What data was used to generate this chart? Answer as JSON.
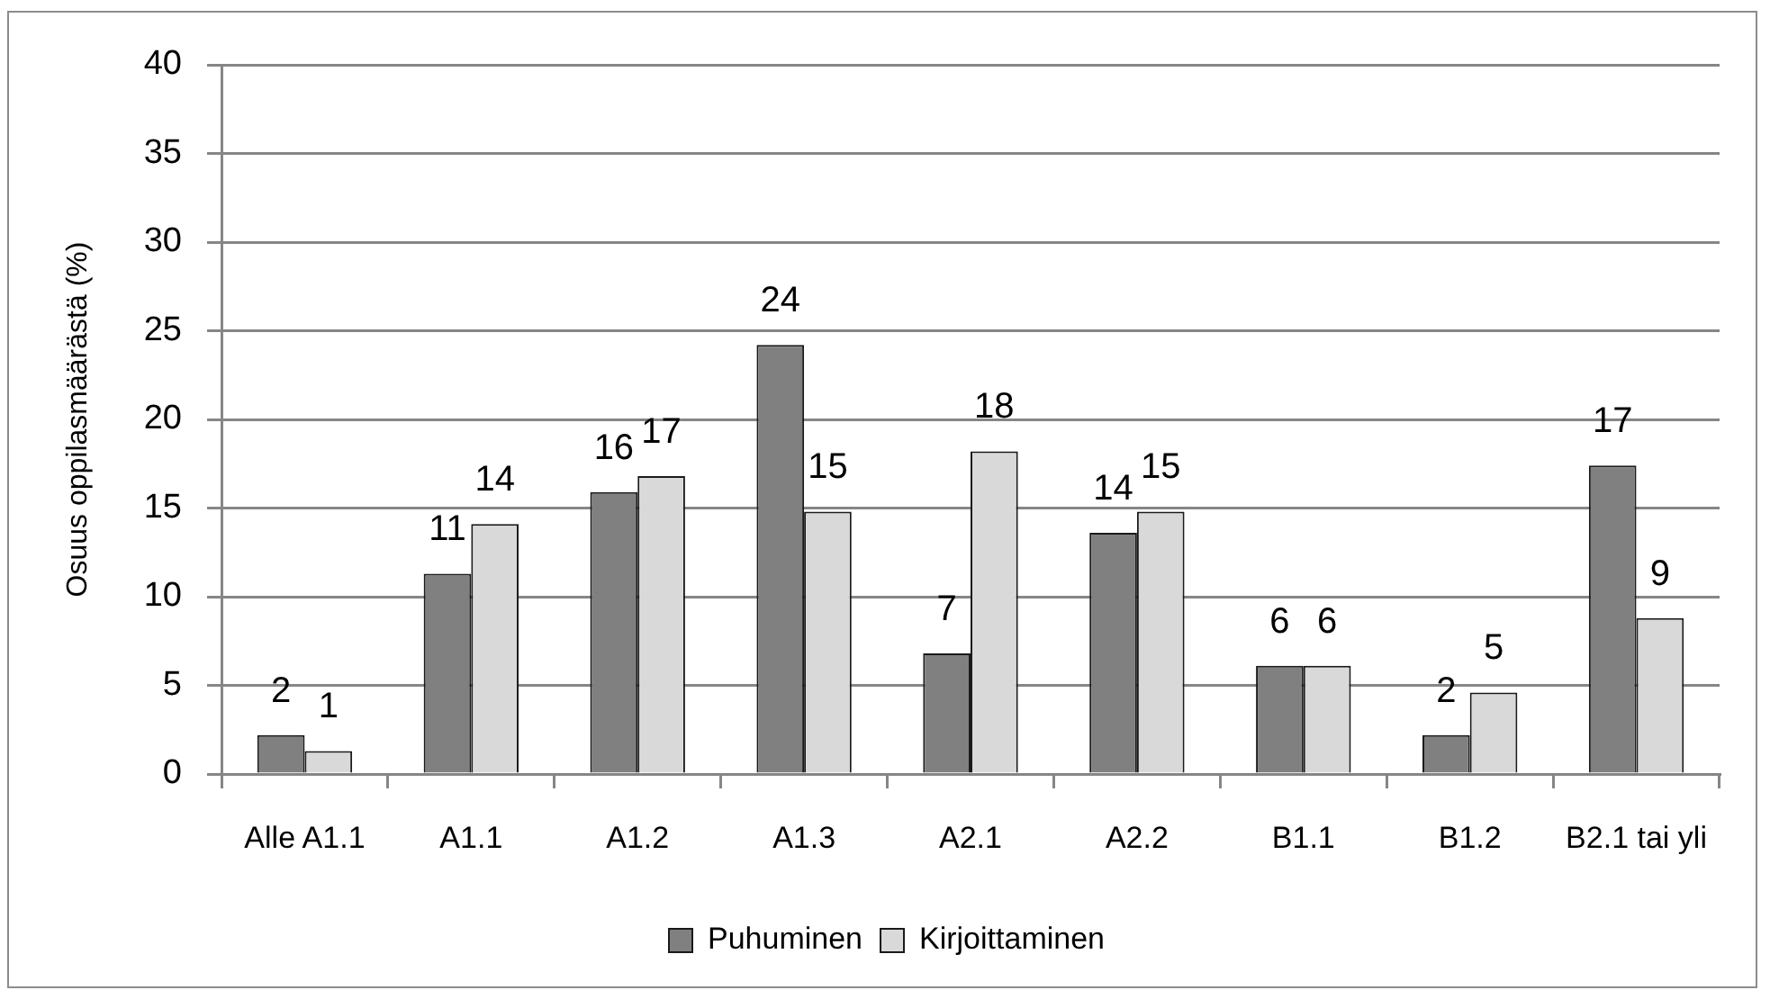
{
  "chart_data": {
    "type": "bar",
    "ylabel": "Osuus oppilasmäärästä (%)",
    "categories": [
      "Alle A1.1",
      "A1.1",
      "A1.2",
      "A1.3",
      "A2.1",
      "A2.2",
      "B1.1",
      "B1.2",
      "B2.1 tai yli"
    ],
    "series": [
      {
        "name": "Puhuminen",
        "color": "#808080",
        "values": [
          2.2,
          11.3,
          15.9,
          24.2,
          6.8,
          13.6,
          6.1,
          2.2,
          17.4
        ],
        "value_labels": [
          "2",
          "11",
          "16",
          "24",
          "7",
          "14",
          "6",
          "2",
          "17"
        ]
      },
      {
        "name": "Kirjoittaminen",
        "color": "#d9d9d9",
        "values": [
          1.3,
          14.1,
          16.8,
          14.8,
          18.2,
          14.8,
          6.1,
          4.6,
          8.8
        ],
        "value_labels": [
          "1",
          "14",
          "17",
          "15",
          "18",
          "15",
          "6",
          "5",
          "9"
        ]
      }
    ],
    "ylim": [
      0,
      40
    ],
    "yticks": [
      0,
      5,
      10,
      15,
      20,
      25,
      30,
      35,
      40
    ],
    "grid": "y",
    "legend": "bottom"
  }
}
